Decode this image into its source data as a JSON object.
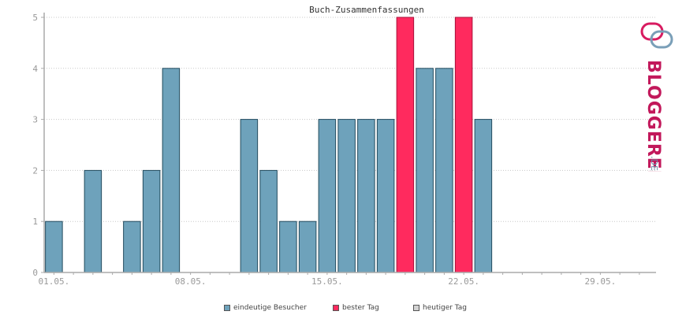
{
  "chart_data": {
    "type": "bar",
    "title": "Buch-Zusammenfassungen",
    "ylim": [
      0,
      5
    ],
    "yticks": [
      "0",
      "1",
      "2",
      "3",
      "4",
      "5"
    ],
    "xtick_labels": [
      {
        "day": 1,
        "label": "01.05."
      },
      {
        "day": 8,
        "label": "08.05."
      },
      {
        "day": 15,
        "label": "15.05."
      },
      {
        "day": 22,
        "label": "22.05."
      },
      {
        "day": 29,
        "label": "29.05."
      }
    ],
    "days": [
      1,
      2,
      3,
      4,
      5,
      6,
      7,
      8,
      9,
      10,
      11,
      12,
      13,
      14,
      15,
      16,
      17,
      18,
      19,
      20,
      21,
      22,
      23,
      24,
      25,
      26,
      27,
      28,
      29,
      30,
      31
    ],
    "values": [
      1,
      0,
      2,
      0,
      1,
      2,
      4,
      0,
      0,
      0,
      3,
      2,
      1,
      1,
      3,
      3,
      3,
      3,
      5,
      4,
      4,
      5,
      3,
      0,
      0,
      0,
      0,
      0,
      0,
      0,
      0
    ],
    "best_days": [
      19,
      22
    ],
    "grid": true,
    "legend_position": "bottom",
    "series_colors": {
      "visitors": "#6ea2bb",
      "best": "#ff2a5e",
      "today": "#d3d3d3"
    },
    "legend": [
      {
        "name": "eindeutige Besucher",
        "color": "#6ea2bb"
      },
      {
        "name": "bester Tag",
        "color": "#ff2a5e"
      },
      {
        "name": "heutiger Tag",
        "color": "#d3d3d3"
      }
    ]
  },
  "logo": {
    "text": "BLOGGEREI",
    "suffix": ".DE"
  }
}
